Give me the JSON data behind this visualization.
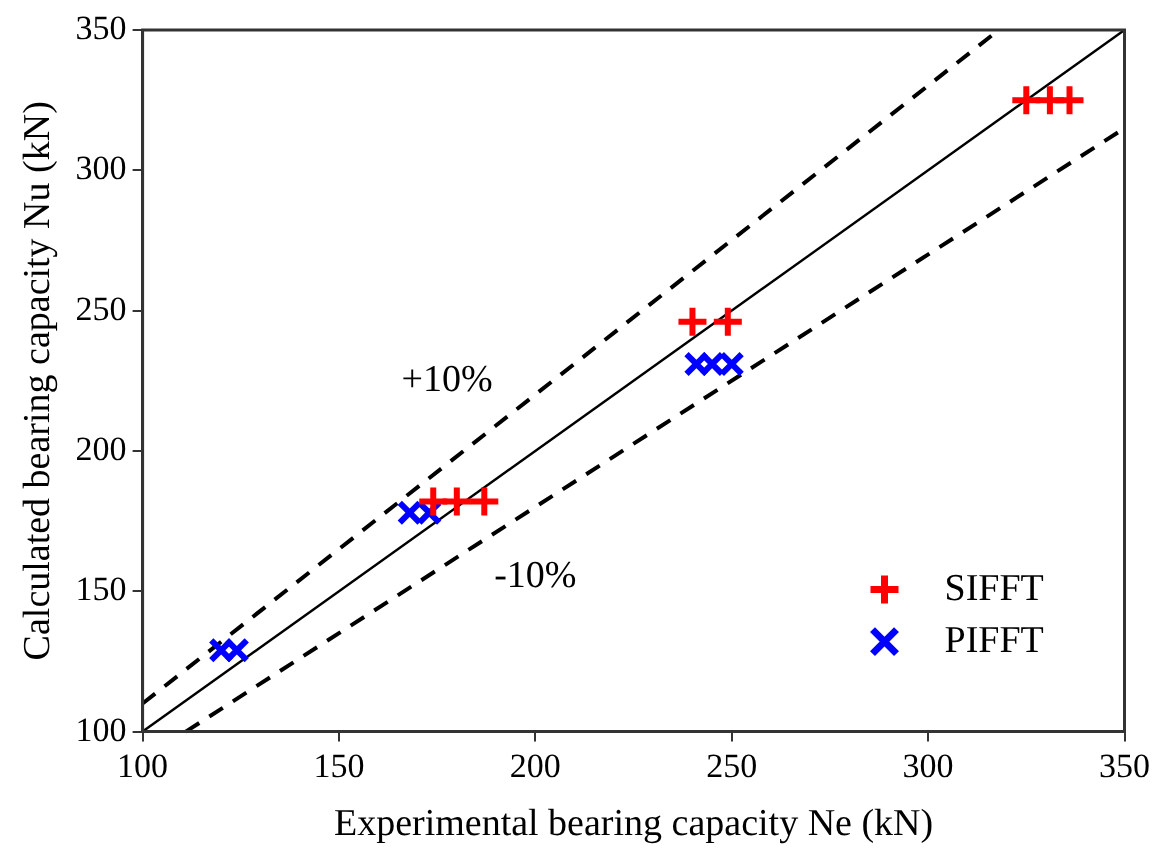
{
  "chart_data": {
    "type": "scatter",
    "xlabel": "Experimental bearing capacity Ne (kN)",
    "ylabel": "Calculated bearing capacity Nu (kN)",
    "xlim": [
      100,
      350
    ],
    "xticks": [
      100,
      150,
      200,
      250,
      300,
      350
    ],
    "ylim": [
      100,
      350
    ],
    "yticks": [
      100,
      150,
      200,
      250,
      300,
      350
    ],
    "grid": false,
    "legend": "bottom right",
    "series": [
      {
        "name": "SIFFT",
        "color": "#ff0000",
        "marker": "cross",
        "x": [
          174,
          180,
          187,
          240,
          249,
          325,
          331,
          336
        ],
        "values": [
          182,
          182,
          182,
          246,
          246,
          325,
          325,
          325
        ]
      },
      {
        "name": "PIFFT",
        "color": "#0000ff",
        "marker": "x",
        "x": [
          120,
          124,
          168,
          173,
          241,
          245,
          250
        ],
        "values": [
          129,
          129,
          178,
          178,
          231,
          231,
          231
        ]
      },
      {
        "type": "line",
        "color": "#000000",
        "line_style": "solid",
        "marker": "none",
        "x": [
          100,
          350
        ],
        "values": [
          100,
          350
        ]
      },
      {
        "type": "line",
        "color": "#000000",
        "line_style": "dashed",
        "marker": "none",
        "x": [
          100,
          318
        ],
        "values": [
          110,
          350
        ]
      },
      {
        "type": "line",
        "color": "#000000",
        "line_style": "dashed",
        "marker": "none",
        "x": [
          111,
          350
        ],
        "values": [
          100,
          315
        ]
      }
    ],
    "annotations": [
      "+10%",
      "-10%"
    ]
  }
}
